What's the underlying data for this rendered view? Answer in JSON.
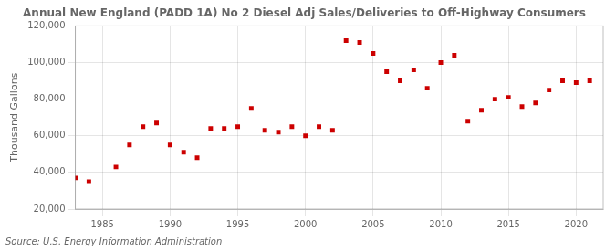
{
  "chart_data": {
    "type": "scatter",
    "title": "Annual New England (PADD 1A) No 2 Diesel Adj Sales/Deliveries to Off-Highway Consumers",
    "ylabel": "Thousand Gallons",
    "annotations": [
      "Source: U.S. Energy Information Administration"
    ],
    "x": [
      1983,
      1984,
      1986,
      1987,
      1988,
      1989,
      1990,
      1991,
      1992,
      1993,
      1994,
      1995,
      1996,
      1997,
      1998,
      1999,
      2000,
      2001,
      2002,
      2003,
      2004,
      2005,
      2006,
      2007,
      2008,
      2009,
      2010,
      2011,
      2012,
      2013,
      2014,
      2015,
      2016,
      2017,
      2018,
      2019,
      2020,
      2021
    ],
    "values": [
      37000,
      35000,
      43000,
      55000,
      65000,
      67000,
      55000,
      51000,
      48000,
      64000,
      64000,
      65000,
      75000,
      63000,
      62000,
      65000,
      60000,
      65000,
      63000,
      112000,
      111000,
      105000,
      95000,
      90000,
      96000,
      86000,
      100000,
      104000,
      68000,
      74000,
      80000,
      81000,
      76000,
      78000,
      85000,
      90000,
      89000,
      90000
    ],
    "color": "#cc0000",
    "marker": "square",
    "xlim": [
      1983,
      2022
    ],
    "xticks": [
      1985,
      1990,
      1995,
      2000,
      2005,
      2010,
      2015,
      2020
    ],
    "ylim": [
      20000,
      120000
    ],
    "yticks": [
      {
        "value": 20000,
        "label": "20,000"
      },
      {
        "value": 40000,
        "label": "40,000"
      },
      {
        "value": 60000,
        "label": "60,000"
      },
      {
        "value": 80000,
        "label": "80,000"
      },
      {
        "value": 100000,
        "label": "100,000"
      },
      {
        "value": 120000,
        "label": "120,000"
      }
    ],
    "grid": true
  }
}
